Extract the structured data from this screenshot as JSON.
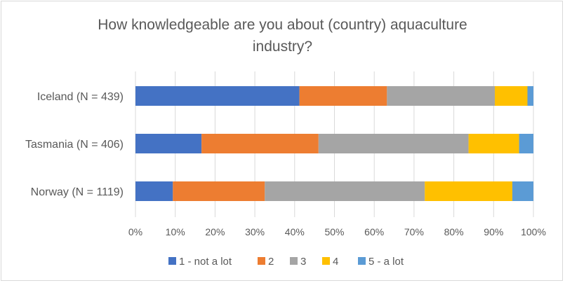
{
  "chart_data": {
    "type": "bar",
    "orientation": "horizontal",
    "stacked": "percent",
    "title_lines": [
      "How knowledgeable are you about (country) aquaculture",
      "industry?"
    ],
    "title": "How knowledgeable are you about (country) aquaculture industry?",
    "categories": [
      "Iceland (N = 439)",
      "Tasmania (N = 406)",
      "Norway (N = 1119)"
    ],
    "xlim": [
      0,
      100
    ],
    "x_ticks": [
      "0%",
      "10%",
      "20%",
      "30%",
      "40%",
      "50%",
      "60%",
      "70%",
      "80%",
      "90%",
      "100%"
    ],
    "grid": true,
    "legend_position": "bottom",
    "series": [
      {
        "name": "1 - not a lot",
        "color": "#4472c4",
        "values": [
          41.2,
          16.6,
          9.4
        ]
      },
      {
        "name": "2",
        "color": "#ed7d31",
        "values": [
          22.0,
          29.4,
          23.1
        ]
      },
      {
        "name": "3",
        "color": "#a5a5a5",
        "values": [
          27.1,
          37.7,
          40.2
        ]
      },
      {
        "name": "4",
        "color": "#ffc000",
        "values": [
          8.2,
          12.7,
          22.0
        ]
      },
      {
        "name": "5 - a lot",
        "color": "#5b9bd5",
        "values": [
          1.5,
          3.6,
          5.3
        ]
      }
    ]
  }
}
